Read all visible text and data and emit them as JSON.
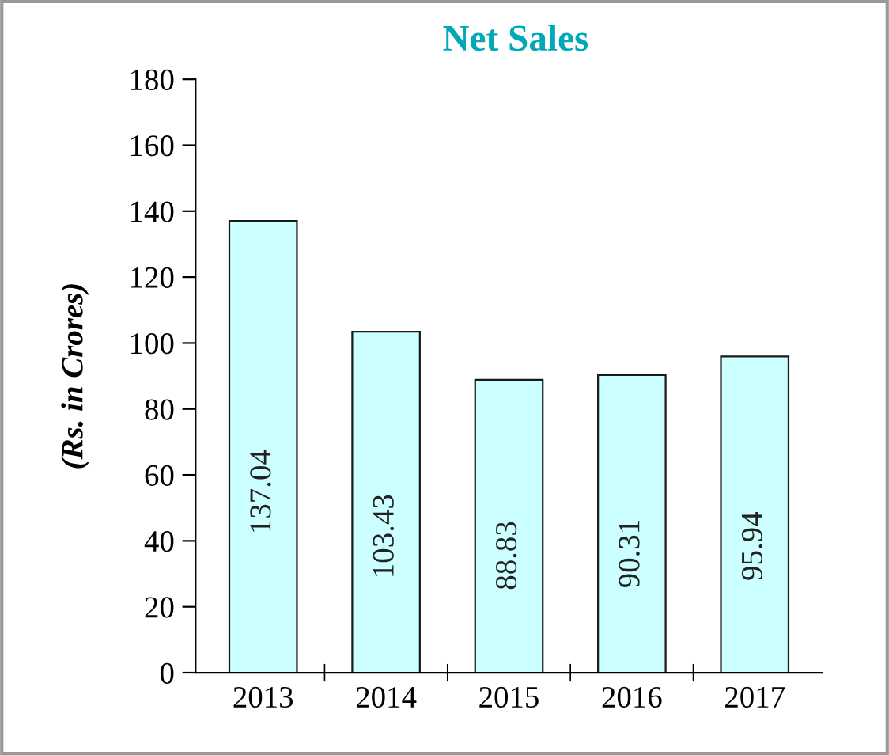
{
  "chart_data": {
    "type": "bar",
    "title": "Net Sales",
    "ylabel": "(Rs. in Crores)",
    "categories": [
      "2013",
      "2014",
      "2015",
      "2016",
      "2017"
    ],
    "series": [
      {
        "color": "#ccffff",
        "values": [
          137.04,
          103.43,
          88.83,
          90.31,
          95.94
        ]
      }
    ],
    "ylim": [
      0,
      180
    ],
    "yticks": [
      0,
      20,
      40,
      60,
      80,
      100,
      120,
      140,
      160,
      180
    ],
    "data_labels": true,
    "grid": false
  }
}
